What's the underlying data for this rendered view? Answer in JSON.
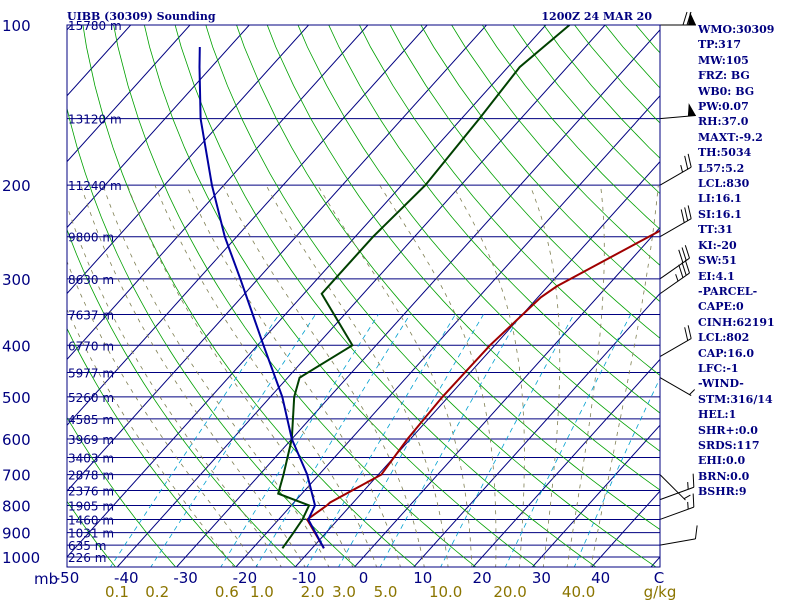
{
  "title_left": "UIBB (30309) Sounding",
  "title_right": "1200Z 24 MAR 20",
  "chart_data": {
    "type": "skew-t log-p",
    "p_range": [
      1000,
      100
    ],
    "t_range": [
      -50,
      0
    ],
    "pressure_ticks": [
      100,
      200,
      300,
      400,
      500,
      600,
      700,
      800,
      900,
      1000
    ],
    "temperature_ticks": [
      -50,
      -40,
      -30,
      -20,
      -10,
      0,
      10,
      20,
      30,
      40
    ],
    "p_unit_label": "mb",
    "t_unit_label": "C",
    "mixing_ratio_ticks": [
      "0.1",
      "0.2",
      "0.6",
      "1.0",
      "2.0",
      "3.0",
      "5.0",
      "10.0",
      "20.0",
      "40.0"
    ],
    "mixing_ratio_unit": "g/kg",
    "height_levels": [
      {
        "p": 100,
        "label": "15780 m"
      },
      {
        "p": 150,
        "label": "13120 m"
      },
      {
        "p": 200,
        "label": "11240 m"
      },
      {
        "p": 250,
        "label": "9800 m"
      },
      {
        "p": 300,
        "label": "8630 m"
      },
      {
        "p": 350,
        "label": "7637 m"
      },
      {
        "p": 400,
        "label": "6770 m"
      },
      {
        "p": 450,
        "label": "5977 m"
      },
      {
        "p": 500,
        "label": "5260 m"
      },
      {
        "p": 550,
        "label": "4585 m"
      },
      {
        "p": 600,
        "label": "3969 m"
      },
      {
        "p": 650,
        "label": "3403 m"
      },
      {
        "p": 700,
        "label": "2878 m"
      },
      {
        "p": 750,
        "label": "2376 m"
      },
      {
        "p": 800,
        "label": "1905 m"
      },
      {
        "p": 850,
        "label": "1460 m"
      },
      {
        "p": 900,
        "label": "1031 m"
      },
      {
        "p": 950,
        "label": "635 m"
      },
      {
        "p": 1000,
        "label": "226 m"
      }
    ],
    "series": [
      {
        "role": "temperature",
        "color": "#A00000",
        "points": [
          [
            963,
            -8
          ],
          [
            850,
            -15.2
          ],
          [
            800,
            -14
          ],
          [
            790,
            -13.9
          ],
          [
            700,
            -9.5
          ],
          [
            600,
            -10.5
          ],
          [
            500,
            -11
          ],
          [
            400,
            -10.8
          ],
          [
            325,
            -9.5
          ],
          [
            310,
            -8.5
          ],
          [
            250,
            -0.5
          ],
          [
            200,
            8
          ],
          [
            150,
            23
          ],
          [
            120,
            34
          ],
          [
            100,
            38
          ]
        ]
      },
      {
        "role": "dewpoint",
        "color": "#004000",
        "points": [
          [
            963,
            -15
          ],
          [
            900,
            -15.5
          ],
          [
            850,
            -16
          ],
          [
            800,
            -17
          ],
          [
            760,
            -24
          ],
          [
            700,
            -26
          ],
          [
            600,
            -30
          ],
          [
            500,
            -36
          ],
          [
            460,
            -38
          ],
          [
            400,
            -34
          ],
          [
            320,
            -47
          ],
          [
            300,
            -47
          ],
          [
            250,
            -47
          ],
          [
            200,
            -46
          ],
          [
            150,
            -47
          ],
          [
            120,
            -48
          ],
          [
            100,
            -46
          ]
        ]
      },
      {
        "role": "parcel",
        "color": "#0000A0",
        "points": [
          [
            963,
            -8
          ],
          [
            850,
            -15
          ],
          [
            800,
            -16
          ],
          [
            700,
            -22
          ],
          [
            600,
            -30
          ],
          [
            500,
            -38
          ],
          [
            400,
            -49
          ],
          [
            300,
            -63
          ],
          [
            250,
            -72
          ],
          [
            200,
            -82
          ],
          [
            150,
            -94
          ],
          [
            120,
            -102
          ],
          [
            110,
            -105
          ]
        ]
      }
    ],
    "wind_barbs": [
      {
        "p": 100,
        "dir": 270,
        "kt": 70
      },
      {
        "p": 150,
        "dir": 265,
        "kt": 50
      },
      {
        "p": 200,
        "dir": 240,
        "kt": 25
      },
      {
        "p": 250,
        "dir": 240,
        "kt": 30
      },
      {
        "p": 300,
        "dir": 235,
        "kt": 30
      },
      {
        "p": 320,
        "dir": 235,
        "kt": 35
      },
      {
        "p": 420,
        "dir": 240,
        "kt": 20
      },
      {
        "p": 460,
        "dir": 300,
        "kt": 5
      },
      {
        "p": 700,
        "dir": 315,
        "kt": 5
      },
      {
        "p": 780,
        "dir": 250,
        "kt": 15
      },
      {
        "p": 850,
        "dir": 250,
        "kt": 15
      },
      {
        "p": 950,
        "dir": 260,
        "kt": 10
      }
    ]
  },
  "stats": [
    "WMO:30309",
    "TP:317",
    "MW:105",
    "FRZ: BG",
    "WB0: BG",
    "PW:0.07",
    "RH:37.0",
    "MAXT:-9.2",
    "TH:5034",
    "L57:5.2",
    "LCL:830",
    "LI:16.1",
    "SI:16.1",
    "TT:31",
    "KI:-20",
    "SW:51",
    "EI:4.1",
    "-PARCEL-",
    "CAPE:0",
    "CINH:62191",
    "LCL:802",
    "CAP:16.0",
    "LFC:-1",
    "-WIND-",
    "STM:316/14",
    "HEL:1",
    "SHR+:0.0",
    "SRDS:117",
    "EHI:0.0",
    "BRN:0.0",
    "BSHR:9"
  ],
  "colors": {
    "frame": "#000080",
    "isobar": "#000080",
    "isotherm": "#000080",
    "dry_adiabat": "#00A000",
    "moist_adiabat": "#7F7F52",
    "mixing_ratio": "#00A0D0",
    "barb": "#000000"
  }
}
